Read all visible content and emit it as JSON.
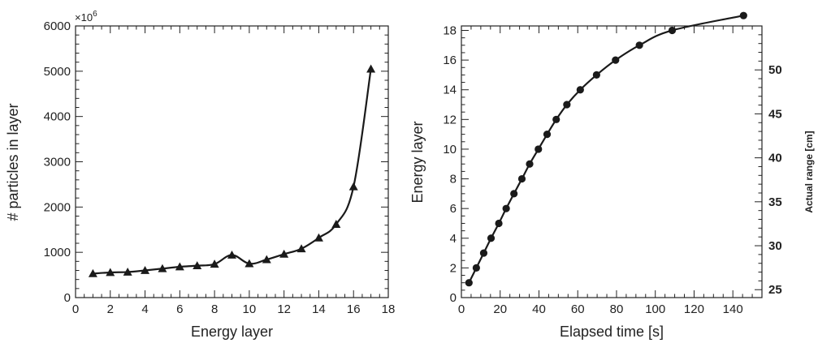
{
  "chart_data": [
    {
      "type": "line",
      "title": "",
      "xlabel": "Energy layer",
      "ylabel": "# particles in layer",
      "y_multiplier_label": "×10",
      "y_multiplier_exponent": "6",
      "xlim": [
        0,
        18
      ],
      "ylim": [
        0,
        6000
      ],
      "x_ticks": [
        0,
        2,
        4,
        6,
        8,
        10,
        12,
        14,
        16,
        18
      ],
      "y_ticks": [
        0,
        1000,
        2000,
        3000,
        4000,
        5000,
        6000
      ],
      "marker": "triangle",
      "grid": false,
      "series": [
        {
          "x": [
            1,
            2,
            3,
            4,
            5,
            6,
            7,
            8,
            9,
            10,
            11,
            12,
            13,
            14,
            15,
            16,
            17
          ],
          "y": [
            530,
            555,
            565,
            600,
            640,
            680,
            705,
            740,
            940,
            750,
            840,
            960,
            1080,
            1320,
            1620,
            2450,
            5050
          ]
        }
      ]
    },
    {
      "type": "line",
      "title": "",
      "xlabel": "Elapsed time [s]",
      "ylabel": "Energy layer",
      "y2label": "Actual range [cm]",
      "xlim": [
        0,
        155
      ],
      "ylim": [
        0,
        18.3
      ],
      "y2lim": [
        24.1,
        55.0
      ],
      "x_ticks": [
        0,
        20,
        40,
        60,
        80,
        100,
        120,
        140
      ],
      "y_ticks": [
        0,
        2,
        4,
        6,
        8,
        10,
        12,
        14,
        16,
        18
      ],
      "y2_ticks": [
        25,
        30,
        35,
        40,
        45,
        50
      ],
      "marker": "circle",
      "grid": false,
      "series": [
        {
          "x": [
            3.9,
            7.7,
            11.5,
            15.3,
            19.3,
            23.1,
            27.1,
            31.2,
            35.2,
            39.7,
            44.2,
            48.9,
            54.4,
            61.3,
            69.7,
            79.5,
            91.8,
            108.7,
            145.5
          ],
          "y": [
            1,
            2,
            3,
            4,
            5,
            6,
            7,
            8,
            9,
            10,
            11,
            12,
            13,
            14,
            15,
            16,
            17,
            18,
            19
          ]
        }
      ]
    }
  ]
}
